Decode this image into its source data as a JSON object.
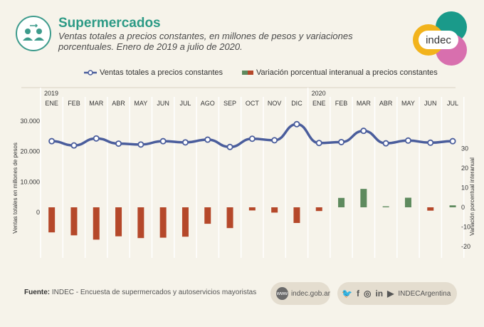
{
  "header": {
    "title": "Supermercados",
    "subtitle": "Ventas totales a precios constantes, en millones de pesos y variaciones porcentuales. Enero de 2019 a julio de 2020.",
    "logo_text": "indec"
  },
  "legend": {
    "line_label": "Ventas totales a precios constantes",
    "bar_label": "Variación porcentual interanual a precios constantes"
  },
  "chart_data": {
    "type": "bar",
    "years": [
      {
        "label": "2019",
        "start_index": 0
      },
      {
        "label": "2020",
        "start_index": 12
      }
    ],
    "categories": [
      "ENE",
      "FEB",
      "MAR",
      "ABR",
      "MAY",
      "JUN",
      "JUL",
      "AGO",
      "SEP",
      "OCT",
      "NOV",
      "DIC",
      "ENE",
      "FEB",
      "MAR",
      "ABR",
      "MAY",
      "JUN",
      "JUL"
    ],
    "series": [
      {
        "name": "Ventas totales a precios constantes",
        "type": "line",
        "axis": "left",
        "values": [
          23400,
          22000,
          24300,
          22600,
          22300,
          23400,
          23000,
          23900,
          21500,
          24200,
          23700,
          29000,
          22800,
          23100,
          26800,
          22700,
          23600,
          22900,
          23400
        ]
      },
      {
        "name": "Variación porcentual interanual a precios constantes",
        "type": "bar",
        "axis": "right",
        "values": [
          -12.8,
          -14.3,
          -16.5,
          -14.8,
          -15.7,
          -15.5,
          -15.0,
          -8.4,
          -10.6,
          -1.6,
          -2.7,
          -8.0,
          -1.9,
          4.8,
          9.4,
          0.5,
          4.9,
          -1.7,
          1.0
        ]
      }
    ],
    "ylabel": "Ventas totales en millones de pesos",
    "y2label": "Variación porcentual interanual",
    "yticks": [
      "0",
      "10.000",
      "20.000",
      "30.000"
    ],
    "yticks_values": [
      0,
      10000,
      20000,
      30000
    ],
    "y2ticks": [
      30,
      20,
      10,
      0,
      -10,
      -20
    ],
    "colors": {
      "line": "#4a5d9c",
      "bar_negative": "#b5482a",
      "bar_positive": "#5e8a5e"
    }
  },
  "footer": {
    "source_label": "Fuente:",
    "source_text": "INDEC - Encuesta de supermercados y autoservicios mayoristas",
    "web": "indec.gob.ar",
    "web_icon": "www",
    "social_handle": "INDECArgentina",
    "social_icons": [
      "twitter-icon",
      "facebook-icon",
      "instagram-icon",
      "linkedin-icon",
      "youtube-icon"
    ]
  }
}
